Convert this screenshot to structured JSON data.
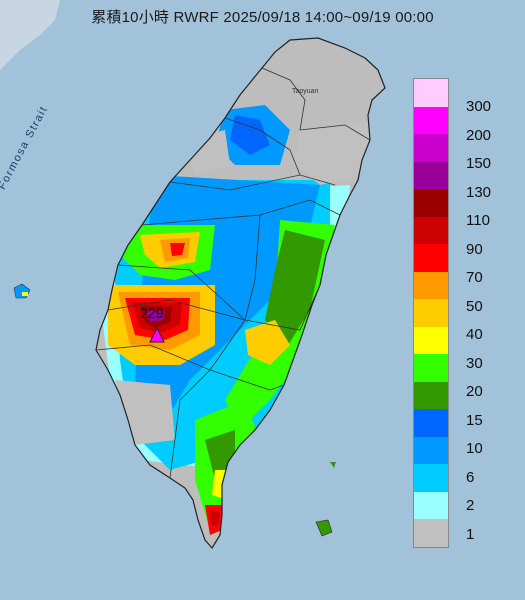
{
  "title": "累積10小時 RWRF 2025/09/18 14:00~09/19 00:00",
  "strait_label": "Formosa Strait",
  "city_label": "Taoyuan",
  "peak_value": "229",
  "legend": [
    {
      "label": "300",
      "color": "#ffccff"
    },
    {
      "label": "200",
      "color": "#ff00ff"
    },
    {
      "label": "150",
      "color": "#cc00cc"
    },
    {
      "label": "130",
      "color": "#990099"
    },
    {
      "label": "110",
      "color": "#990000"
    },
    {
      "label": "90",
      "color": "#cc0000"
    },
    {
      "label": "70",
      "color": "#ff0000"
    },
    {
      "label": "50",
      "color": "#ff9900"
    },
    {
      "label": "40",
      "color": "#ffcc00"
    },
    {
      "label": "30",
      "color": "#ffff00"
    },
    {
      "label": "20",
      "color": "#33ff00"
    },
    {
      "label": "15",
      "color": "#339900"
    },
    {
      "label": "10",
      "color": "#0066ff"
    },
    {
      "label": "6",
      "color": "#0099ff"
    },
    {
      "label": "2",
      "color": "#00ccff"
    },
    {
      "label": "1",
      "color": "#99ffff"
    },
    {
      "label": "",
      "color": "#c0c0c0"
    }
  ]
}
